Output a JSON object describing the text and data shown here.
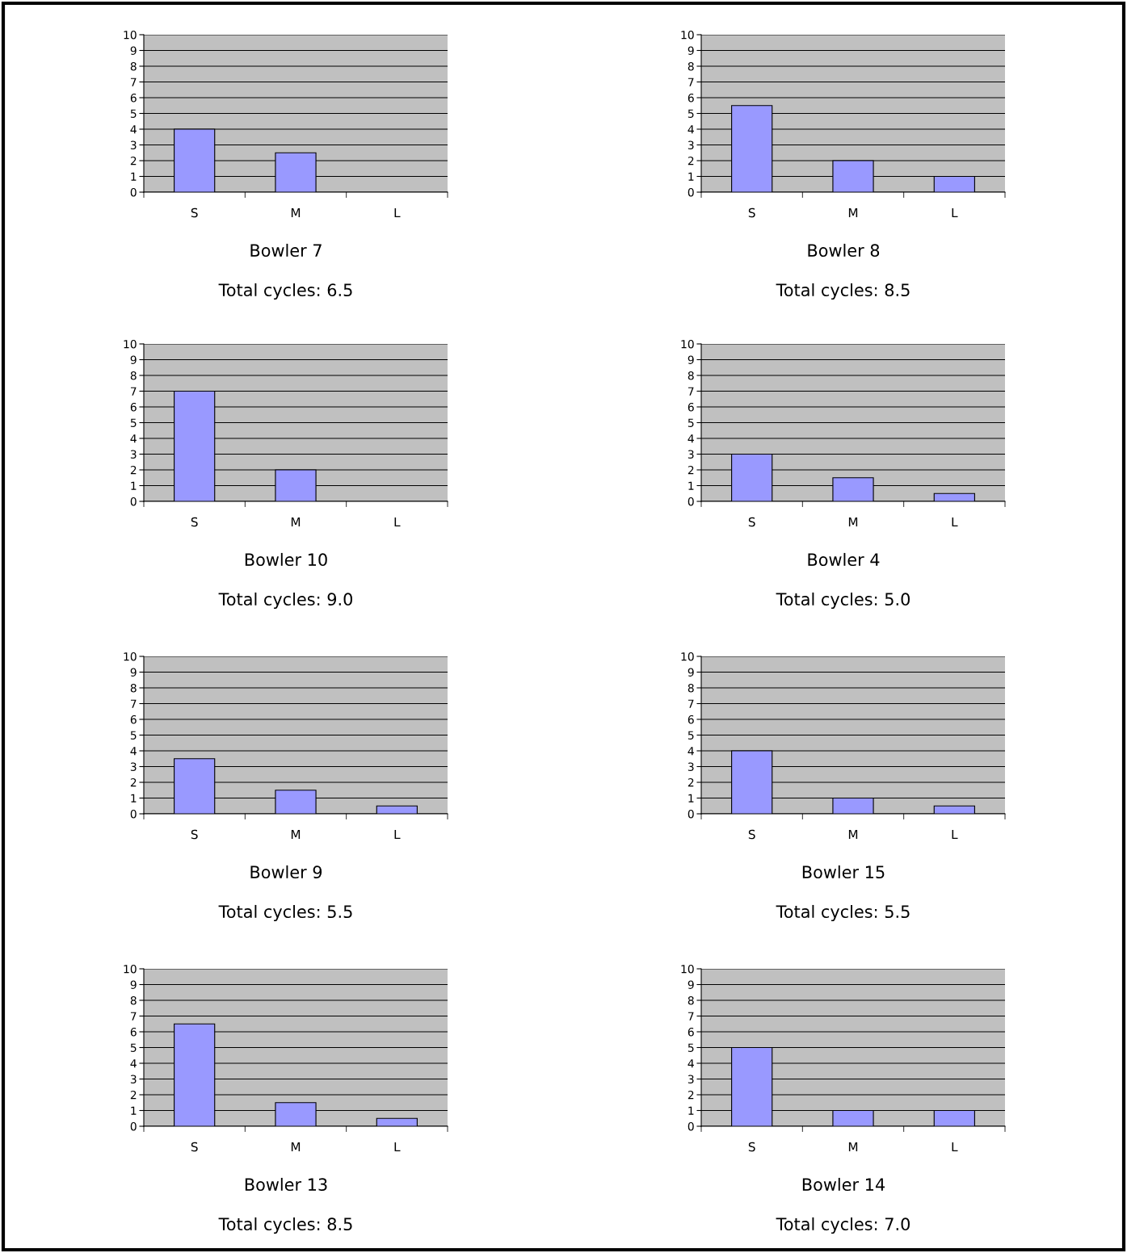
{
  "chart_data": [
    {
      "type": "bar",
      "title": "Bowler 7",
      "subtitle": "Total cycles: 6.5",
      "categories": [
        "S",
        "M",
        "L"
      ],
      "values": [
        4,
        2.5,
        null
      ],
      "color": "#9999ff",
      "ylim": [
        0,
        10
      ],
      "yticks": [
        0,
        1,
        2,
        3,
        4,
        5,
        6,
        7,
        8,
        9,
        10
      ],
      "grid": "y"
    },
    {
      "type": "bar",
      "title": "Bowler 8",
      "subtitle": "Total cycles: 8.5",
      "categories": [
        "S",
        "M",
        "L"
      ],
      "values": [
        5.5,
        2,
        1
      ],
      "color": "#9999ff",
      "ylim": [
        0,
        10
      ],
      "yticks": [
        0,
        1,
        2,
        3,
        4,
        5,
        6,
        7,
        8,
        9,
        10
      ],
      "grid": "y"
    },
    {
      "type": "bar",
      "title": "Bowler 10",
      "subtitle": "Total cycles: 9.0",
      "categories": [
        "S",
        "M",
        "L"
      ],
      "values": [
        7,
        2,
        null
      ],
      "color": "#9999ff",
      "ylim": [
        0,
        10
      ],
      "yticks": [
        0,
        1,
        2,
        3,
        4,
        5,
        6,
        7,
        8,
        9,
        10
      ],
      "grid": "y"
    },
    {
      "type": "bar",
      "title": "Bowler 4",
      "subtitle": "Total cycles: 5.0",
      "categories": [
        "S",
        "M",
        "L"
      ],
      "values": [
        3,
        1.5,
        0.5
      ],
      "color": "#9999ff",
      "ylim": [
        0,
        10
      ],
      "yticks": [
        0,
        1,
        2,
        3,
        4,
        5,
        6,
        7,
        8,
        9,
        10
      ],
      "grid": "y"
    },
    {
      "type": "bar",
      "title": "Bowler 9",
      "subtitle": "Total cycles: 5.5",
      "categories": [
        "S",
        "M",
        "L"
      ],
      "values": [
        3.5,
        1.5,
        0.5
      ],
      "color": "#9999ff",
      "ylim": [
        0,
        10
      ],
      "yticks": [
        0,
        1,
        2,
        3,
        4,
        5,
        6,
        7,
        8,
        9,
        10
      ],
      "grid": "y"
    },
    {
      "type": "bar",
      "title": "Bowler 15",
      "subtitle": "Total cycles: 5.5",
      "categories": [
        "S",
        "M",
        "L"
      ],
      "values": [
        4,
        1,
        0.5
      ],
      "color": "#9999ff",
      "ylim": [
        0,
        10
      ],
      "yticks": [
        0,
        1,
        2,
        3,
        4,
        5,
        6,
        7,
        8,
        9,
        10
      ],
      "grid": "y"
    },
    {
      "type": "bar",
      "title": "Bowler 13",
      "subtitle": "Total cycles: 8.5",
      "categories": [
        "S",
        "M",
        "L"
      ],
      "values": [
        6.5,
        1.5,
        0.5
      ],
      "color": "#9999ff",
      "ylim": [
        0,
        10
      ],
      "yticks": [
        0,
        1,
        2,
        3,
        4,
        5,
        6,
        7,
        8,
        9,
        10
      ],
      "grid": "y"
    },
    {
      "type": "bar",
      "title": "Bowler 14",
      "subtitle": "Total cycles: 7.0",
      "categories": [
        "S",
        "M",
        "L"
      ],
      "values": [
        5,
        1,
        1
      ],
      "color": "#9999ff",
      "ylim": [
        0,
        10
      ],
      "yticks": [
        0,
        1,
        2,
        3,
        4,
        5,
        6,
        7,
        8,
        9,
        10
      ],
      "grid": "y"
    }
  ]
}
